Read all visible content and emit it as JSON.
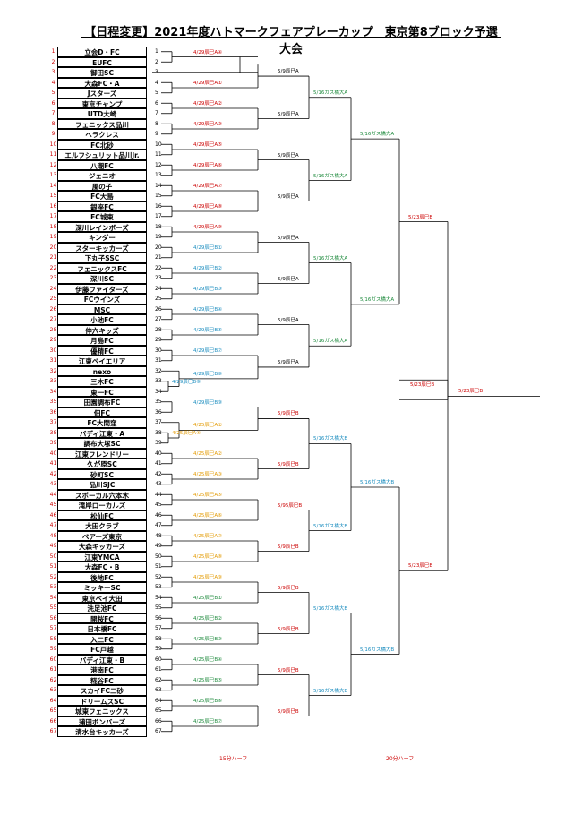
{
  "title": "【日程変更】2021年度ハトマークフェアプレーカップ　東京第8ブロック予選大会",
  "teams": [
    "立会D・FC",
    "EUFC",
    "御田SC",
    "大森FC・A",
    "Jスターズ",
    "東京チャンプ",
    "UTD大崎",
    "フェニックス品川",
    "ヘラクレス",
    "FC北砂",
    "エルフシュリット品川Jr.",
    "八潮FC",
    "ジェニオ",
    "風の子",
    "FC大島",
    "銀座FC",
    "FC城東",
    "深川レインボーズ",
    "キンダー",
    "スターキッカーズ",
    "下丸子SSC",
    "フェニックスFC",
    "深川SC",
    "伊藤ファイターズ",
    "FCウインズ",
    "MSC",
    "小池FC",
    "仲六キッズ",
    "月島FC",
    "優精FC",
    "江東ベイエリア",
    "nexo",
    "三木FC",
    "東一FC",
    "田園調布FC",
    "佃FC",
    "FC大間窪",
    "バディ江東・A",
    "調布大塚SC",
    "江東フレンドリー",
    "久が原SC",
    "砂町SC",
    "品川SJC",
    "スポーカル六本木",
    "滝岸ローカルズ",
    "松仙FC",
    "大田クラブ",
    "ベアーズ東京",
    "大森キッカーズ",
    "江東YMCA",
    "大森FC・B",
    "後地FC",
    "ミッキーSC",
    "東京ベイ大田",
    "洗足池FC",
    "開桜FC",
    "日本橋FC",
    "入二FC",
    "FC戸越",
    "バディ江東・B",
    "港南FC",
    "糀谷FC",
    "スカイFC二砂",
    "ドリームスSC",
    "城東フェニックス",
    "蒲田ボンバーズ",
    "清水台キッカーズ"
  ],
  "r1": [
    {
      "t": "4/29辰巳A④",
      "c": "red"
    },
    {
      "t": "4/29辰巳A①",
      "c": "red"
    },
    {
      "t": "4/29辰巳A②",
      "c": "red"
    },
    {
      "t": "4/29辰巳A③",
      "c": "red"
    },
    {
      "t": "4/29辰巳A⑤",
      "c": "red"
    },
    {
      "t": "4/29辰巳A⑥",
      "c": "red"
    },
    {
      "t": "4/29辰巳A⑦",
      "c": "red"
    },
    {
      "t": "4/29辰巳A⑧",
      "c": "red"
    },
    {
      "t": "4/29辰巳A⑨",
      "c": "red"
    },
    {
      "t": "4/29辰巳B①",
      "c": "blue"
    },
    {
      "t": "4/29辰巳B②",
      "c": "blue"
    },
    {
      "t": "4/29辰巳B③",
      "c": "blue"
    },
    {
      "t": "4/29辰巳B④",
      "c": "blue"
    },
    {
      "t": "4/29辰巳B⑤",
      "c": "blue"
    },
    {
      "t": "4/29辰巳B⑦",
      "c": "blue"
    },
    {
      "t": "4/29辰巳B⑧",
      "c": "blue"
    },
    {
      "t": "4/29辰巳B⑥",
      "c": "blue"
    },
    {
      "t": "4/29辰巳B⑨",
      "c": "blue"
    },
    {
      "t": "4/25辰巳A④",
      "c": "orange"
    },
    {
      "t": "4/25辰巳A①",
      "c": "orange"
    },
    {
      "t": "4/25辰巳A②",
      "c": "orange"
    },
    {
      "t": "4/25辰巳A③",
      "c": "orange"
    },
    {
      "t": "4/25辰巳A⑤",
      "c": "orange"
    },
    {
      "t": "4/25辰巳A⑥",
      "c": "orange"
    },
    {
      "t": "4/25辰巳A⑦",
      "c": "orange"
    },
    {
      "t": "4/25辰巳A⑧",
      "c": "orange"
    },
    {
      "t": "4/25辰巳A⑨",
      "c": "orange"
    },
    {
      "t": "4/25辰巳B①",
      "c": "green"
    },
    {
      "t": "4/25辰巳B②",
      "c": "green"
    },
    {
      "t": "4/25辰巳B③",
      "c": "green"
    },
    {
      "t": "4/25辰巳B④",
      "c": "green"
    },
    {
      "t": "4/25辰巳B⑤",
      "c": "green"
    },
    {
      "t": "4/25辰巳B⑥",
      "c": "green"
    },
    {
      "t": "4/25辰巳B⑦",
      "c": "green"
    },
    {
      "t": "4/25辰巳B⑧",
      "c": "green"
    }
  ],
  "r2": [
    {
      "t": "5/9辰巳A",
      "c": "dark"
    },
    {
      "t": "5/9辰巳A",
      "c": "dark"
    },
    {
      "t": "5/9辰巳A",
      "c": "dark"
    },
    {
      "t": "5/9辰巳A",
      "c": "dark"
    },
    {
      "t": "5/9辰巳A",
      "c": "dark"
    },
    {
      "t": "5/9辰巳A",
      "c": "dark"
    },
    {
      "t": "5/9辰巳A",
      "c": "dark"
    },
    {
      "t": "5/9辰巳A",
      "c": "dark"
    },
    {
      "t": "5/9辰巳B",
      "c": "red"
    },
    {
      "t": "5/9辰巳B",
      "c": "red"
    },
    {
      "t": "5/95辰巳B",
      "c": "red"
    },
    {
      "t": "5/9辰巳B",
      "c": "red"
    },
    {
      "t": "5/9辰巳B",
      "c": "red"
    },
    {
      "t": "5/9辰巳B",
      "c": "red"
    },
    {
      "t": "5/9辰巳B",
      "c": "red"
    },
    {
      "t": "5/9辰巳B",
      "c": "red"
    }
  ],
  "r3": [
    {
      "t": "5/16ガス橋大A",
      "c": "green"
    },
    {
      "t": "5/16ガス橋大A",
      "c": "green"
    },
    {
      "t": "5/16ガス橋大A",
      "c": "green"
    },
    {
      "t": "5/16ガス橋大A",
      "c": "green"
    },
    {
      "t": "5/16ガス橋大B",
      "c": "blue"
    },
    {
      "t": "5/16ガス橋大B",
      "c": "blue"
    },
    {
      "t": "5/16ガス橋大B",
      "c": "blue"
    },
    {
      "t": "5/16ガス橋大B",
      "c": "blue"
    }
  ],
  "r4": [
    {
      "t": "5/16ガス橋大A",
      "c": "green"
    },
    {
      "t": "5/16ガス橋大A",
      "c": "green"
    },
    {
      "t": "5/16ガス橋大B",
      "c": "blue"
    },
    {
      "t": "5/16ガス橋大B",
      "c": "blue"
    }
  ],
  "r5": [
    {
      "t": "5/23辰巳B",
      "c": "red"
    },
    {
      "t": "5/23辰巳B",
      "c": "red"
    }
  ],
  "side": {
    "t": "5/23辰巳B",
    "c": "red"
  },
  "final": {
    "t": "5/23辰巳B",
    "c": "red"
  },
  "footer_left": "15分ハーフ",
  "footer_right": "20分ハーフ"
}
